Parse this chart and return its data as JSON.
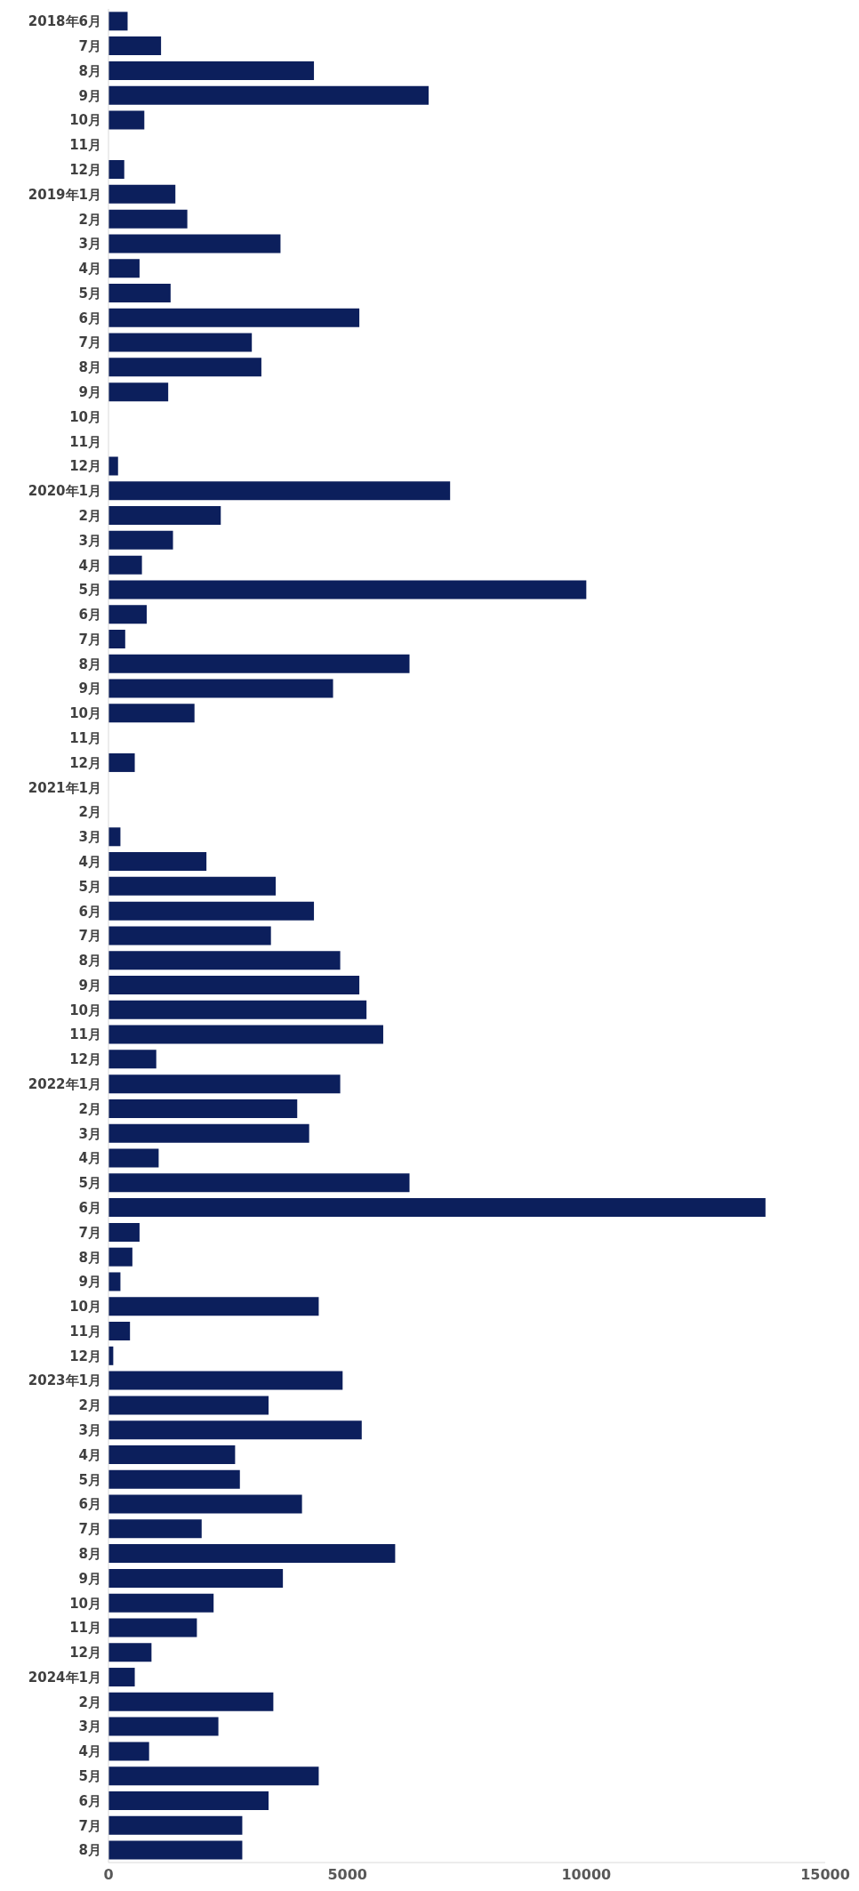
{
  "chart_data": {
    "type": "bar",
    "orientation": "horizontal",
    "categories": [
      "2018年6月",
      "7月",
      "8月",
      "9月",
      "10月",
      "11月",
      "12月",
      "2019年1月",
      "2月",
      "3月",
      "4月",
      "5月",
      "6月",
      "7月",
      "8月",
      "9月",
      "10月",
      "11月",
      "12月",
      "2020年1月",
      "2月",
      "3月",
      "4月",
      "5月",
      "6月",
      "7月",
      "8月",
      "9月",
      "10月",
      "11月",
      "12月",
      "2021年1月",
      "2月",
      "3月",
      "4月",
      "5月",
      "6月",
      "7月",
      "8月",
      "9月",
      "10月",
      "11月",
      "12月",
      "2022年1月",
      "2月",
      "3月",
      "4月",
      "5月",
      "6月",
      "7月",
      "8月",
      "9月",
      "10月",
      "11月",
      "12月",
      "2023年1月",
      "2月",
      "3月",
      "4月",
      "5月",
      "6月",
      "7月",
      "8月",
      "9月",
      "10月",
      "11月",
      "12月",
      "2024年1月",
      "2月",
      "3月",
      "4月",
      "5月",
      "6月",
      "7月",
      "8月"
    ],
    "values": [
      400,
      1100,
      4300,
      6700,
      750,
      0,
      330,
      1400,
      1650,
      3600,
      650,
      1300,
      5250,
      3000,
      3200,
      1250,
      0,
      0,
      200,
      7150,
      2350,
      1350,
      700,
      10000,
      800,
      350,
      6300,
      4700,
      1800,
      0,
      550,
      0,
      0,
      250,
      2050,
      3500,
      4300,
      3400,
      4850,
      5250,
      5400,
      5750,
      1000,
      4850,
      3950,
      4200,
      1050,
      6300,
      13750,
      650,
      500,
      250,
      4400,
      450,
      100,
      4900,
      3350,
      5300,
      2650,
      2750,
      4050,
      1950,
      6000,
      3650,
      2200,
      1850,
      900,
      550,
      3450,
      2300,
      850,
      4400,
      3350,
      2800,
      2800
    ],
    "color": "#0c1f5c",
    "xlim": [
      0,
      15000
    ],
    "xticks": [
      0,
      5000,
      10000,
      15000
    ]
  }
}
